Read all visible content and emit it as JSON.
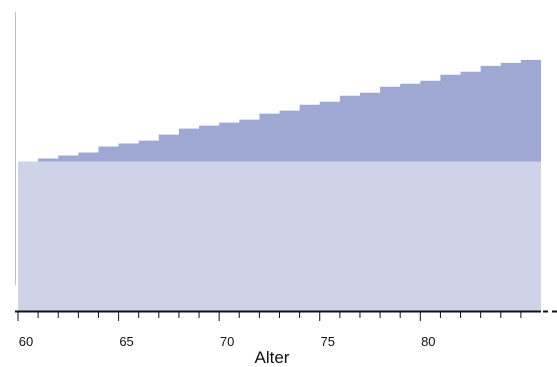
{
  "chart_data": {
    "type": "area",
    "xlabel": "Alter",
    "ylabel": "",
    "title": "",
    "x_start": 60,
    "x_end": 85,
    "xticks": [
      60,
      65,
      70,
      75,
      80
    ],
    "xtick_labels": [
      "60",
      "65",
      "70",
      "75",
      "80"
    ],
    "series": [
      {
        "color": "#ced3e8",
        "step": true,
        "values": [
          0.5,
          0.5,
          0.5,
          0.5,
          0.5,
          0.5,
          0.5,
          0.5,
          0.5,
          0.5,
          0.5,
          0.5,
          0.5,
          0.5,
          0.5,
          0.5,
          0.5,
          0.5,
          0.5,
          0.5,
          0.5,
          0.5,
          0.5,
          0.5,
          0.5,
          0.5
        ]
      },
      {
        "color": "#9ea8d3",
        "step": true,
        "values": [
          0.5,
          0.51,
          0.52,
          0.53,
          0.55,
          0.56,
          0.57,
          0.59,
          0.61,
          0.62,
          0.63,
          0.64,
          0.66,
          0.67,
          0.69,
          0.7,
          0.72,
          0.73,
          0.75,
          0.76,
          0.77,
          0.79,
          0.8,
          0.82,
          0.83,
          0.84
        ]
      }
    ],
    "ylim": [
      0,
      1.0
    ]
  }
}
